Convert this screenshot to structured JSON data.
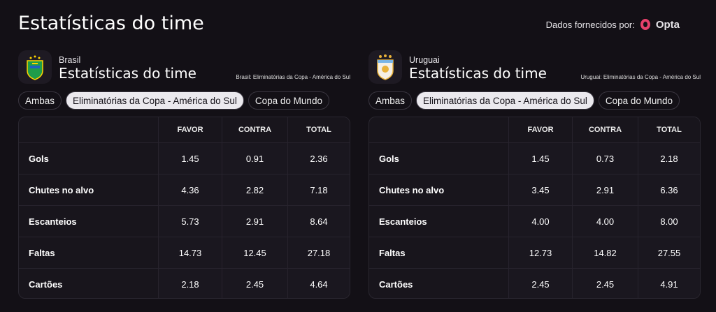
{
  "header": {
    "title": "Estatísticas do time",
    "provider_label": "Dados fornecidos por:",
    "provider": "Opta"
  },
  "panels": [
    {
      "team": "Brasil",
      "title": "Estatísticas do time",
      "competition": "Brasil: Eliminatórias da Copa - América do Sul",
      "tabs": [
        {
          "label": "Ambas",
          "selected": false
        },
        {
          "label": "Eliminatórias da Copa - América do Sul",
          "selected": true
        },
        {
          "label": "Copa do Mundo",
          "selected": false
        }
      ],
      "table": {
        "columns": [
          "FAVOR",
          "CONTRA",
          "TOTAL"
        ],
        "rows": [
          [
            "Gols",
            "1.45",
            "0.91",
            "2.36"
          ],
          [
            "Chutes no alvo",
            "4.36",
            "2.82",
            "7.18"
          ],
          [
            "Escanteios",
            "5.73",
            "2.91",
            "8.64"
          ],
          [
            "Faltas",
            "14.73",
            "12.45",
            "27.18"
          ],
          [
            "Cartões",
            "2.18",
            "2.45",
            "4.64"
          ]
        ]
      }
    },
    {
      "team": "Uruguai",
      "title": "Estatísticas do time",
      "competition": "Uruguai: Eliminatórias da Copa - América do Sul",
      "tabs": [
        {
          "label": "Ambas",
          "selected": false
        },
        {
          "label": "Eliminatórias da Copa - América do Sul",
          "selected": true
        },
        {
          "label": "Copa do Mundo",
          "selected": false
        }
      ],
      "table": {
        "columns": [
          "FAVOR",
          "CONTRA",
          "TOTAL"
        ],
        "rows": [
          [
            "Gols",
            "1.45",
            "0.73",
            "2.18"
          ],
          [
            "Chutes no alvo",
            "3.45",
            "2.91",
            "6.36"
          ],
          [
            "Escanteios",
            "4.00",
            "4.00",
            "8.00"
          ],
          [
            "Faltas",
            "12.73",
            "14.82",
            "27.55"
          ],
          [
            "Cartões",
            "2.45",
            "2.45",
            "4.91"
          ]
        ]
      }
    }
  ]
}
